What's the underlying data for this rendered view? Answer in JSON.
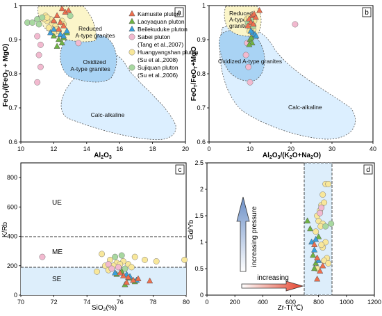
{
  "legend": {
    "entries": [
      {
        "label": "Kamusite pluton",
        "marker": "triangle",
        "color": "#ef6f4e"
      },
      {
        "label": "Laoyaquan pluton",
        "marker": "triangle",
        "color": "#6fb343"
      },
      {
        "label": "Beilekuduke pluton",
        "marker": "triangle",
        "color": "#39a0dd"
      },
      {
        "label": "Sabei pluton",
        "sub": "(Tang et al.,2007)",
        "marker": "circle",
        "color": "#f2b9cf"
      },
      {
        "label": "Huangyangshan pluton",
        "sub": "(Su et al.,2008)",
        "marker": "circle",
        "color": "#f8e79a"
      },
      {
        "label": "Sujiquan pluton",
        "sub": "(Su et al.,2006)",
        "marker": "circle",
        "color": "#a8d8a0"
      }
    ]
  },
  "chart_data": [
    {
      "panel": "a",
      "type": "scatter",
      "xlabel": "Al₂O₃",
      "ylabel": "FeOₜ/(FeOₜ + MgO)",
      "xlim": [
        10,
        20
      ],
      "ylim": [
        0.6,
        1.0
      ],
      "xticks": [
        10,
        12,
        14,
        16,
        18,
        20
      ],
      "yticks": [
        0.6,
        0.7,
        0.8,
        0.9,
        1.0
      ],
      "regions": [
        "Reduced A-type granites",
        "Oxidized A-type granites",
        "Calc-alkaline"
      ],
      "series": [
        {
          "name": "Kamusite pluton",
          "points": [
            [
              12.5,
              0.99
            ],
            [
              12.7,
              0.98
            ],
            [
              12.2,
              0.97
            ],
            [
              12.9,
              0.985
            ],
            [
              12.4,
              0.95
            ],
            [
              12.6,
              0.94
            ],
            [
              12.3,
              0.93
            ],
            [
              12.0,
              0.955
            ]
          ]
        },
        {
          "name": "Laoyaquan pluton",
          "points": [
            [
              12.3,
              0.9
            ],
            [
              12.5,
              0.89
            ],
            [
              12.2,
              0.88
            ],
            [
              12.8,
              0.92
            ],
            [
              12.0,
              0.91
            ],
            [
              12.6,
              0.905
            ]
          ]
        },
        {
          "name": "Beilekuduke pluton",
          "points": [
            [
              11.8,
              0.92
            ],
            [
              12.0,
              0.93
            ],
            [
              12.4,
              0.915
            ],
            [
              12.8,
              0.925
            ],
            [
              12.6,
              0.91
            ]
          ]
        },
        {
          "name": "Sabei pluton",
          "points": [
            [
              11.0,
              0.91
            ],
            [
              11.2,
              0.885
            ],
            [
              11.1,
              0.855
            ],
            [
              11.2,
              0.82
            ],
            [
              11.0,
              0.775
            ],
            [
              13.5,
              0.89
            ]
          ]
        },
        {
          "name": "Huangyangshan pluton",
          "points": [
            [
              11.5,
              0.97
            ],
            [
              11.8,
              0.96
            ],
            [
              11.6,
              0.955
            ],
            [
              12.0,
              0.95
            ],
            [
              11.9,
              0.945
            ],
            [
              12.1,
              0.94
            ],
            [
              11.7,
              0.935
            ],
            [
              12.2,
              0.93
            ],
            [
              11.4,
              0.96
            ],
            [
              12.5,
              0.955
            ],
            [
              12.3,
              0.925
            ],
            [
              12.0,
              0.92
            ],
            [
              11.6,
              0.965
            ],
            [
              12.6,
              0.945
            ]
          ]
        },
        {
          "name": "Sujiquan pluton",
          "points": [
            [
              10.4,
              0.95
            ],
            [
              10.7,
              0.95
            ],
            [
              11.0,
              0.96
            ],
            [
              11.3,
              0.965
            ],
            [
              13.0,
              0.97
            ],
            [
              11.1,
              0.945
            ]
          ]
        }
      ]
    },
    {
      "panel": "b",
      "type": "scatter",
      "xlabel": "Al₂O₃/(K₂O+Na₂O)",
      "ylabel": "FeOₜ/FeOₜ+MgO",
      "xlim": [
        0,
        40
      ],
      "ylim": [
        0.6,
        1.0
      ],
      "xticks": [
        0,
        10,
        20,
        30,
        40
      ],
      "yticks": [
        0.6,
        0.7,
        0.8,
        0.9,
        1.0
      ],
      "regions": [
        "Reduced A-type granites",
        "Oxidized A-type granites",
        "Calc-alkaline"
      ],
      "series": [
        {
          "name": "Kamusite pluton",
          "points": [
            [
              12.3,
              0.985
            ],
            [
              10.5,
              0.97
            ],
            [
              11.0,
              0.975
            ],
            [
              9.8,
              0.96
            ],
            [
              10.2,
              0.95
            ],
            [
              11.4,
              0.965
            ],
            [
              9.5,
              0.94
            ],
            [
              10.8,
              0.945
            ]
          ]
        },
        {
          "name": "Laoyaquan pluton",
          "points": [
            [
              10.0,
              0.9
            ],
            [
              10.5,
              0.89
            ],
            [
              9.8,
              0.885
            ],
            [
              11.0,
              0.91
            ],
            [
              10.3,
              0.905
            ]
          ]
        },
        {
          "name": "Beilekuduke pluton",
          "points": [
            [
              10.7,
              0.92
            ],
            [
              11.2,
              0.915
            ],
            [
              10.2,
              0.925
            ],
            [
              11.5,
              0.91
            ]
          ]
        },
        {
          "name": "Sabei pluton",
          "points": [
            [
              9.0,
              0.855
            ],
            [
              9.6,
              0.82
            ],
            [
              10.0,
              0.775
            ],
            [
              21.0,
              0.945
            ],
            [
              9.3,
              0.89
            ]
          ]
        },
        {
          "name": "Huangyangshan pluton",
          "points": [
            [
              9.2,
              0.96
            ],
            [
              9.8,
              0.955
            ],
            [
              10.5,
              0.95
            ],
            [
              9.5,
              0.945
            ],
            [
              10.0,
              0.935
            ],
            [
              10.8,
              0.93
            ],
            [
              9.7,
              0.965
            ],
            [
              10.3,
              0.94
            ],
            [
              11.0,
              0.955
            ],
            [
              9.9,
              0.925
            ]
          ]
        },
        {
          "name": "Sujiquan pluton",
          "points": [
            [
              9.5,
              0.95
            ],
            [
              10.2,
              0.96
            ],
            [
              10.8,
              0.94
            ]
          ]
        }
      ]
    },
    {
      "panel": "c",
      "type": "scatter",
      "xlabel": "SiO₂(%)",
      "ylabel": "K/Rb",
      "xlim": [
        70,
        80
      ],
      "ylim": [
        0,
        900
      ],
      "xticks": [
        70,
        72,
        74,
        76,
        78,
        80
      ],
      "yticks": [
        0,
        200,
        400,
        600,
        800
      ],
      "reference_lines": [
        380,
        180
      ],
      "regions": [
        "UE",
        "ME",
        "SE"
      ],
      "series": [
        {
          "name": "Kamusite pluton",
          "points": [
            [
              76.2,
              130
            ],
            [
              76.5,
              120
            ],
            [
              76.8,
              100
            ],
            [
              77.1,
              110
            ],
            [
              77.8,
              95
            ],
            [
              76.4,
              85
            ],
            [
              76.0,
              150
            ]
          ]
        },
        {
          "name": "Laoyaquan pluton",
          "points": [
            [
              75.8,
              140
            ],
            [
              76.1,
              160
            ],
            [
              76.6,
              115
            ],
            [
              76.9,
              90
            ],
            [
              76.3,
              70
            ]
          ]
        },
        {
          "name": "Beilekuduke pluton",
          "points": [
            [
              76.6,
              125
            ],
            [
              77.0,
              100
            ],
            [
              76.4,
              140
            ],
            [
              75.7,
              150
            ]
          ]
        },
        {
          "name": "Sabei pluton",
          "points": [
            [
              71.3,
              260
            ],
            [
              75.3,
              210
            ],
            [
              75.9,
              190
            ],
            [
              75.5,
              180
            ]
          ]
        },
        {
          "name": "Huangyangshan pluton",
          "points": [
            [
              74.9,
              280
            ],
            [
              75.4,
              240
            ],
            [
              75.8,
              220
            ],
            [
              76.2,
              230
            ],
            [
              76.5,
              210
            ],
            [
              76.9,
              260
            ],
            [
              77.5,
              240
            ],
            [
              78.2,
              230
            ],
            [
              79.9,
              240
            ],
            [
              75.1,
              200
            ],
            [
              75.6,
              200
            ],
            [
              76.0,
              210
            ],
            [
              76.7,
              190
            ],
            [
              74.6,
              160
            ],
            [
              75.3,
              170
            ]
          ]
        },
        {
          "name": "Sujiquan pluton",
          "points": [
            [
              76.1,
              270
            ],
            [
              75.7,
              260
            ],
            [
              76.3,
              180
            ]
          ]
        }
      ]
    },
    {
      "panel": "d",
      "type": "scatter",
      "xlabel": "Zr-T(℃)",
      "ylabel": "Gd/Yb",
      "xlim": [
        0,
        1200
      ],
      "ylim": [
        0,
        2.5
      ],
      "xticks": [
        0,
        200,
        400,
        600,
        800,
        1000,
        1200
      ],
      "yticks": [
        0,
        0.5,
        1,
        1.5,
        2,
        2.5
      ],
      "band": [
        700,
        900
      ],
      "annotations": [
        "increasing pressure",
        "increasing"
      ],
      "series": [
        {
          "name": "Kamusite pluton",
          "points": [
            [
              770,
              0.95
            ],
            [
              790,
              0.7
            ],
            [
              810,
              0.45
            ],
            [
              790,
              0.3
            ],
            [
              830,
              0.55
            ]
          ]
        },
        {
          "name": "Laoyaquan pluton",
          "points": [
            [
              720,
              1.4
            ],
            [
              740,
              1.25
            ],
            [
              760,
              0.75
            ],
            [
              780,
              0.6
            ],
            [
              800,
              1.1
            ],
            [
              770,
              0.5
            ]
          ]
        },
        {
          "name": "Beilekuduke pluton",
          "points": [
            [
              750,
              1.0
            ],
            [
              770,
              0.85
            ],
            [
              800,
              0.65
            ],
            [
              780,
              1.05
            ]
          ]
        },
        {
          "name": "Sabei pluton",
          "points": [
            [
              820,
              1.65
            ],
            [
              810,
              1.55
            ]
          ]
        },
        {
          "name": "Huangyangshan pluton",
          "points": [
            [
              850,
              2.1
            ],
            [
              870,
              2.1
            ],
            [
              830,
              1.9
            ],
            [
              820,
              1.7
            ],
            [
              840,
              1.75
            ],
            [
              810,
              1.6
            ],
            [
              790,
              1.5
            ],
            [
              800,
              1.4
            ],
            [
              830,
              1.35
            ],
            [
              815,
              1.3
            ],
            [
              780,
              1.2
            ],
            [
              850,
              1.0
            ],
            [
              830,
              0.9
            ],
            [
              860,
              0.7
            ],
            [
              840,
              0.65
            ],
            [
              870,
              0.6
            ],
            [
              790,
              0.5
            ],
            [
              820,
              0.95
            ]
          ]
        },
        {
          "name": "Sujiquan pluton",
          "points": [
            [
              890,
              1.35
            ],
            [
              850,
              1.3
            ]
          ]
        }
      ]
    }
  ]
}
